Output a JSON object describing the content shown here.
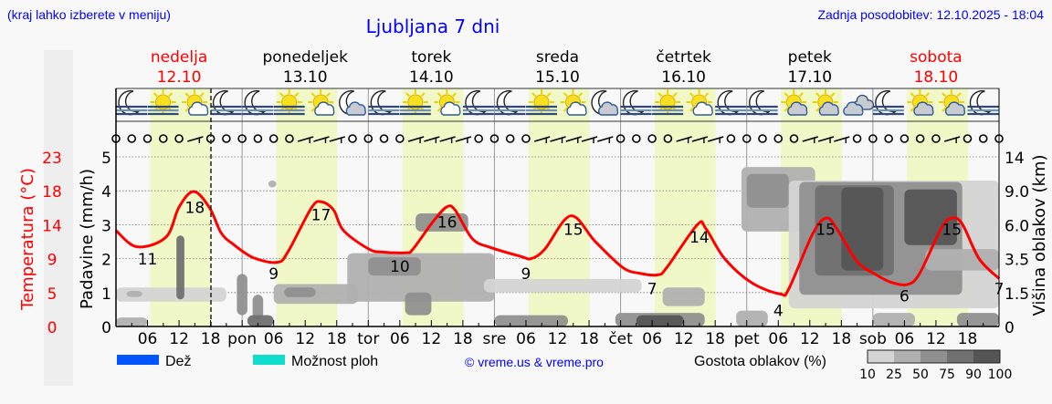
{
  "header": {
    "region_hint": "(kraj lahko izberete v meniju)",
    "title": "Ljubljana 7 dni",
    "updated": "Zadnja posodobitev: 12.10.2025 - 18:04"
  },
  "colors": {
    "link_blue": "#0000ff",
    "weekend_red": "#ff0000",
    "temperature_line": "#ff0000",
    "daylight_band": "#f0f8c8",
    "rain": "#0055ff",
    "showers": "#11ddcc"
  },
  "days": [
    {
      "name": "nedelja",
      "date": "12.10",
      "weekend": true,
      "abbr": ""
    },
    {
      "name": "ponedeljek",
      "date": "13.10",
      "weekend": false,
      "abbr": "pon"
    },
    {
      "name": "torek",
      "date": "14.10",
      "weekend": false,
      "abbr": "tor"
    },
    {
      "name": "sreda",
      "date": "15.10",
      "weekend": false,
      "abbr": "sre"
    },
    {
      "name": "četrtek",
      "date": "16.10",
      "weekend": false,
      "abbr": "čet"
    },
    {
      "name": "petek",
      "date": "17.10",
      "weekend": false,
      "abbr": "pet"
    },
    {
      "name": "sobota",
      "date": "18.10",
      "weekend": true,
      "abbr": "sob"
    }
  ],
  "legend": {
    "rain_label": "Dež",
    "showers_label": "Možnost ploh",
    "copyright": "© vreme.us & vreme.pro",
    "cloud_density_label": "Gostota oblakov (%)",
    "cloud_density_ticks": [
      "10",
      "25",
      "50",
      "75",
      "90",
      "100"
    ],
    "cloud_density_colors": [
      "#d4d4d4",
      "#b0b0b0",
      "#909090",
      "#707070",
      "#555555"
    ]
  },
  "chart_data": {
    "type": "line",
    "x_unit": "hours since 12.10 00:00",
    "xlim": [
      0,
      168
    ],
    "x_tick_labels": [
      "06",
      "12",
      "18"
    ],
    "current_time_hour": 18.07,
    "grid": true,
    "y_left_label": "Padavine (mm/h)",
    "y_left_ticks": [
      0,
      1,
      2,
      3,
      4,
      5
    ],
    "y_left_lim": [
      0,
      5.3
    ],
    "y_temp_label": "Temperatura (°C)",
    "y_temp_ticks": [
      0,
      5,
      9,
      14,
      18,
      23
    ],
    "y_right_label": "Višina oblakov (km)",
    "y_right_ticks": [
      "0",
      "1.5",
      "3.5",
      "6.0",
      "9.0",
      "14"
    ],
    "daylight_hours": [
      6.5,
      18.1
    ],
    "temperature": {
      "hours": [
        0,
        4,
        9.5,
        12,
        14.8,
        17.8,
        20,
        22.4,
        26.2,
        30.7,
        32.7,
        37.2,
        39.1,
        41.4,
        43.3,
        48.1,
        50.7,
        55.2,
        56.5,
        60.3,
        62.9,
        64.5,
        67.8,
        71.3,
        77,
        79,
        81.6,
        86.5,
        91.2,
        96.4,
        99.7,
        103.1,
        104.8,
        110.6,
        112.2,
        115.8,
        121,
        126.4,
        128,
        132.5,
        135.1,
        137.1,
        141,
        144.2,
        147.4,
        150.6,
        152.9,
        157,
        159,
        161,
        164.2,
        168
      ],
      "values": [
        13.0,
        10.8,
        12.1,
        16.2,
        18.3,
        16.1,
        12.7,
        11.1,
        9.3,
        8.7,
        10.1,
        16.1,
        16.9,
        15.8,
        13.0,
        10.5,
        10.1,
        10.0,
        10.5,
        14.2,
        16.2,
        15.8,
        11.9,
        10.7,
        9.5,
        9.2,
        10.5,
        15.0,
        11.5,
        8.0,
        7.2,
        7.0,
        8.0,
        13.8,
        13.3,
        9.2,
        5.9,
        4.4,
        5.1,
        12.5,
        14.7,
        13.3,
        8.8,
        7.2,
        6.0,
        5.7,
        7.2,
        13.3,
        14.7,
        13.9,
        9.2,
        6.5
      ]
    },
    "temperature_labels": [
      {
        "hour": 6,
        "value": 11
      },
      {
        "hour": 15,
        "value": 18
      },
      {
        "hour": 30,
        "value": 9
      },
      {
        "hour": 39,
        "value": 17
      },
      {
        "hour": 54,
        "value": 10
      },
      {
        "hour": 63,
        "value": 16
      },
      {
        "hour": 78,
        "value": 9
      },
      {
        "hour": 87,
        "value": 15
      },
      {
        "hour": 102,
        "value": 7
      },
      {
        "hour": 111,
        "value": 14
      },
      {
        "hour": 126,
        "value": 4
      },
      {
        "hour": 135,
        "value": 15
      },
      {
        "hour": 150,
        "value": 6
      },
      {
        "hour": 159,
        "value": 15
      },
      {
        "hour": 168,
        "value": 7
      }
    ],
    "precipitation": [],
    "clouds": [
      {
        "h0": 0,
        "h1": 6,
        "km0": 0,
        "km1": 0.4,
        "density": 25
      },
      {
        "h0": 0,
        "h1": 21,
        "km0": 1.1,
        "km1": 1.8,
        "density": 10
      },
      {
        "h0": 2,
        "h1": 5,
        "km0": 1.3,
        "km1": 1.6,
        "density": 25
      },
      {
        "h0": 11.5,
        "h1": 13,
        "km0": 1.2,
        "km1": 5.2,
        "density": 75
      },
      {
        "h0": 23,
        "h1": 25,
        "km0": 0.5,
        "km1": 2.6,
        "density": 50
      },
      {
        "h0": 26,
        "h1": 28,
        "km0": 0.3,
        "km1": 1.4,
        "density": 50
      },
      {
        "h0": 25,
        "h1": 30,
        "km0": 0,
        "km1": 0.5,
        "density": 75
      },
      {
        "h0": 29,
        "h1": 30.5,
        "km0": 9.5,
        "km1": 10.5,
        "density": 25
      },
      {
        "h0": 30,
        "h1": 46,
        "km0": 1.0,
        "km1": 2.0,
        "density": 25
      },
      {
        "h0": 32,
        "h1": 38,
        "km0": 1.3,
        "km1": 1.8,
        "density": 50
      },
      {
        "h0": 44,
        "h1": 72,
        "km0": 1.1,
        "km1": 3.9,
        "density": 25
      },
      {
        "h0": 48,
        "h1": 58,
        "km0": 2.5,
        "km1": 3.6,
        "density": 50
      },
      {
        "h0": 55,
        "h1": 60,
        "km0": 0.5,
        "km1": 1.5,
        "density": 50
      },
      {
        "h0": 57,
        "h1": 67,
        "km0": 5.5,
        "km1": 7.0,
        "density": 50
      },
      {
        "h0": 70,
        "h1": 100,
        "km0": 1.5,
        "km1": 2.3,
        "density": 10
      },
      {
        "h0": 72,
        "h1": 86,
        "km0": 0,
        "km1": 0.5,
        "density": 50
      },
      {
        "h0": 95,
        "h1": 112,
        "km0": 0,
        "km1": 0.6,
        "density": 50
      },
      {
        "h0": 99,
        "h1": 108,
        "km0": 0,
        "km1": 0.5,
        "density": 90
      },
      {
        "h0": 104,
        "h1": 112,
        "km0": 0.9,
        "km1": 1.8,
        "density": 25
      },
      {
        "h0": 118,
        "h1": 124,
        "km0": 0,
        "km1": 0.7,
        "density": 25
      },
      {
        "h0": 119,
        "h1": 133,
        "km0": 5.5,
        "km1": 12.5,
        "density": 25
      },
      {
        "h0": 120,
        "h1": 128,
        "km0": 7.5,
        "km1": 11.5,
        "density": 50
      },
      {
        "h0": 128,
        "h1": 168,
        "km0": 0.8,
        "km1": 10.5,
        "density": 10
      },
      {
        "h0": 130,
        "h1": 161,
        "km0": 1.4,
        "km1": 10.3,
        "density": 50
      },
      {
        "h0": 133,
        "h1": 148,
        "km0": 2.5,
        "km1": 9.8,
        "density": 75
      },
      {
        "h0": 138,
        "h1": 146,
        "km0": 2.8,
        "km1": 9.5,
        "density": 90
      },
      {
        "h0": 150,
        "h1": 160,
        "km0": 4.5,
        "km1": 9.2,
        "density": 90
      },
      {
        "h0": 144,
        "h1": 152,
        "km0": 0,
        "km1": 0.6,
        "density": 25
      },
      {
        "h0": 154,
        "h1": 168,
        "km0": 2.8,
        "km1": 4.2,
        "density": 25
      },
      {
        "h0": 160,
        "h1": 168,
        "km0": 0,
        "km1": 0.6,
        "density": 50
      }
    ],
    "weather_icons": [
      "moon-fog",
      "sun-fog",
      "sun-cloud",
      "moon-fog",
      "moon-fog",
      "sun-fog",
      "sun-cloud",
      "moon-cloud",
      "moon-fog",
      "sun-fog",
      "sun-cloud",
      "moon-fog",
      "moon-fog",
      "sun-fog",
      "sun-cloud",
      "moon-cloud",
      "moon-fog",
      "sun-fog",
      "sun-cloud",
      "moon-fog",
      "moon-fog",
      "sun-grey-cloud",
      "sun-grey-cloud",
      "cloudy",
      "moon-fog",
      "sun-grey-cloud",
      "sun-grey-cloud",
      "moon-fog"
    ],
    "wind": [
      "calm",
      "calm",
      "calm",
      "calm",
      "calm",
      "barb",
      "calm",
      "calm",
      "calm",
      "calm",
      "calm",
      "calm",
      "barb",
      "barb",
      "barb",
      "calm",
      "calm",
      "calm",
      "calm",
      "barb",
      "barb",
      "barb",
      "barb",
      "calm",
      "calm",
      "calm",
      "calm",
      "barb",
      "barb",
      "barb",
      "barb",
      "barb",
      "calm",
      "calm",
      "calm",
      "calm",
      "barb",
      "barb",
      "barb",
      "calm",
      "calm",
      "calm",
      "calm",
      "calm",
      "barb",
      "barb",
      "barb",
      "calm",
      "calm",
      "calm",
      "calm",
      "calm",
      "calm",
      "barb",
      "calm",
      "calm",
      "calm"
    ]
  }
}
